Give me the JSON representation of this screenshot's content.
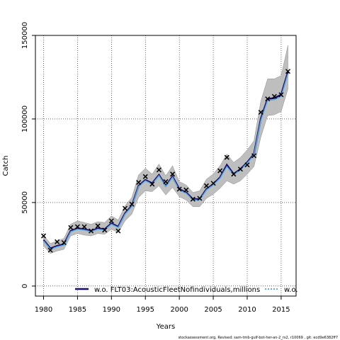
{
  "chart_data": {
    "type": "line",
    "title": "",
    "xlabel": "Years",
    "ylabel": "Catch",
    "xlim": [
      1978.8,
      2017.2
    ],
    "ylim": [
      -6000,
      150000
    ],
    "xticks": [
      1980,
      1985,
      1990,
      1995,
      2000,
      2005,
      2010,
      2015
    ],
    "yticks": [
      0,
      50000,
      100000,
      150000
    ],
    "grid": true,
    "legend_position": "bottom",
    "x": [
      1980,
      1981,
      1982,
      1983,
      1984,
      1985,
      1986,
      1987,
      1988,
      1989,
      1990,
      1991,
      1992,
      1993,
      1994,
      1995,
      1996,
      1997,
      1998,
      1999,
      2000,
      2001,
      2002,
      2003,
      2004,
      2005,
      2006,
      2007,
      2008,
      2009,
      2010,
      2011,
      2012,
      2013,
      2014,
      2015,
      2016
    ],
    "band_lower": [
      24000,
      19500,
      21000,
      22000,
      30000,
      31500,
      30500,
      30000,
      31500,
      31000,
      34000,
      32000,
      39000,
      43000,
      53000,
      57000,
      56500,
      60000,
      54500,
      59000,
      53500,
      51500,
      47500,
      47500,
      52500,
      55000,
      58500,
      63000,
      61000,
      63000,
      67000,
      71500,
      89000,
      102000,
      102500,
      104500,
      118000
    ],
    "band_upper": [
      30500,
      25500,
      27000,
      28500,
      37000,
      39000,
      38000,
      37000,
      38500,
      38000,
      42000,
      39500,
      48000,
      53000,
      66500,
      70500,
      67000,
      73000,
      66000,
      72000,
      62500,
      60500,
      56000,
      57000,
      64000,
      67000,
      72000,
      79000,
      74000,
      77000,
      81500,
      87000,
      110500,
      124000,
      124000,
      126000,
      144000
    ],
    "series": [
      {
        "name": "w.o. FLT03:AcousticFleetNofindividuals,millions",
        "line_color": "#1a0a6e",
        "x": [
          1980,
          1981,
          1982,
          1983,
          1984,
          1985,
          1986,
          1987,
          1988,
          1989,
          1990,
          1991,
          1992,
          1993,
          1994,
          1995,
          1996,
          1997,
          1998,
          1999,
          2000,
          2001,
          2002,
          2003,
          2004,
          2005,
          2006,
          2007,
          2008,
          2009,
          2010,
          2011,
          2012,
          2013,
          2014,
          2015,
          2016
        ],
        "values": [
          27500,
          22500,
          24000,
          25000,
          33000,
          34500,
          34000,
          33000,
          34500,
          34000,
          37500,
          35500,
          43500,
          48000,
          60000,
          63500,
          61500,
          66500,
          60000,
          65500,
          58000,
          56000,
          52000,
          52000,
          58000,
          61000,
          65000,
          72500,
          67000,
          70000,
          74000,
          79000,
          100000,
          112000,
          112500,
          114500,
          128000
        ]
      },
      {
        "name": "w.o.",
        "line_color": "#5aaee0",
        "x": [
          1980,
          1981,
          1982,
          1983,
          1984,
          1985,
          1986,
          1987,
          1988,
          1989,
          1990,
          1991,
          1992,
          1993,
          1994,
          1995,
          1996,
          1997,
          1998,
          1999,
          2000,
          2001,
          2002,
          2003,
          2004,
          2005,
          2006,
          2007,
          2008,
          2009,
          2010,
          2011,
          2012,
          2013,
          2014,
          2015,
          2016
        ],
        "values": [
          27000,
          22000,
          23500,
          24500,
          32500,
          34000,
          33500,
          32500,
          34000,
          33500,
          37000,
          35000,
          43000,
          47500,
          59500,
          63000,
          61000,
          66000,
          59500,
          65000,
          57500,
          55500,
          51500,
          51500,
          57500,
          60500,
          64500,
          71500,
          66500,
          69500,
          73500,
          78500,
          99000,
          111000,
          111500,
          113500,
          127000
        ]
      }
    ],
    "observed": {
      "x": [
        1980,
        1981,
        1982,
        1983,
        1984,
        1985,
        1986,
        1987,
        1988,
        1989,
        1990,
        1991,
        1992,
        1993,
        1994,
        1995,
        1996,
        1997,
        1998,
        1999,
        2000,
        2001,
        2002,
        2003,
        2004,
        2005,
        2006,
        2007,
        2008,
        2009,
        2010,
        2011,
        2012,
        2013,
        2014,
        2015,
        2016
      ],
      "values": [
        30000,
        21500,
        26500,
        26000,
        35000,
        35500,
        35500,
        33000,
        36000,
        33500,
        39000,
        33000,
        46500,
        49000,
        62000,
        65500,
        61000,
        69500,
        62500,
        67000,
        58000,
        57500,
        52000,
        52500,
        60000,
        61500,
        69000,
        77000,
        67000,
        70000,
        72500,
        78000,
        104000,
        112000,
        113500,
        114500,
        128500
      ]
    }
  },
  "footer": {
    "text": "stockassessment.org, Revised: sam-tmb-gulf-bot-her-an-2_rs2, r10069 , git: ecd9e6382ff7"
  },
  "colors": {
    "band": "#bebebe",
    "band_edge": "#8c8c8c",
    "grid": "#000000",
    "marker": "#000000"
  }
}
